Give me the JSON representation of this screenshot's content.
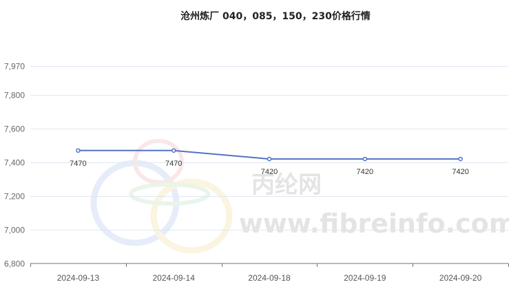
{
  "chart_data": {
    "type": "line",
    "title": "沧州炼厂 040，085，150，230价格行情",
    "categories": [
      "2024-09-13",
      "2024-09-14",
      "2024-09-18",
      "2024-09-19",
      "2024-09-20"
    ],
    "series": [
      {
        "values": [
          7470,
          7470,
          7420,
          7420,
          7420
        ]
      }
    ],
    "data_labels": [
      "7470",
      "7470",
      "7420",
      "7420",
      "7420"
    ],
    "y_ticks": [
      6800,
      7000,
      7200,
      7400,
      7600,
      7800,
      7970
    ],
    "y_tick_labels": [
      "6,800",
      "7,000",
      "7,200",
      "7,400",
      "7,600",
      "7,800",
      "7,970"
    ],
    "ylim": [
      6800,
      7970
    ],
    "grid": true,
    "line_color": "#5470c6"
  },
  "watermark": {
    "cn": "丙纶网",
    "url": "www.fibreinfo.com"
  }
}
